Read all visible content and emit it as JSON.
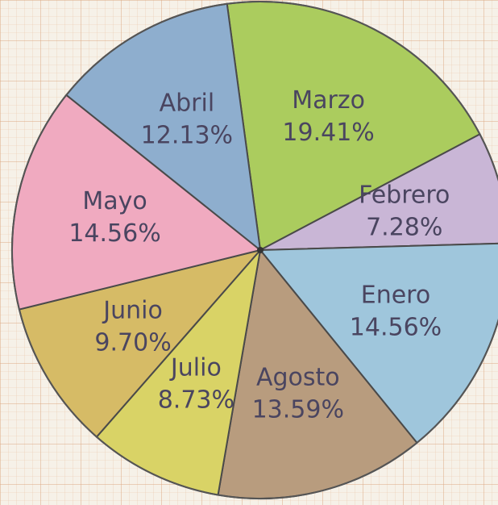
{
  "chart_data": {
    "type": "pie",
    "categories": [
      "Marzo",
      "Febrero",
      "Enero",
      "Agosto",
      "Julio",
      "Junio",
      "Mayo",
      "Abril"
    ],
    "values": [
      19.41,
      7.28,
      14.56,
      13.59,
      8.73,
      9.7,
      14.56,
      12.13
    ],
    "value_labels": [
      "19.41%",
      "7.28%",
      "14.56%",
      "13.59%",
      "8.73%",
      "9.70%",
      "14.56%",
      "12.13%"
    ],
    "colors": [
      "#abcc5e",
      "#c9b6d6",
      "#9fc6dc",
      "#b89c7e",
      "#d9d366",
      "#d6bb66",
      "#f0aac0",
      "#8eaece"
    ]
  }
}
